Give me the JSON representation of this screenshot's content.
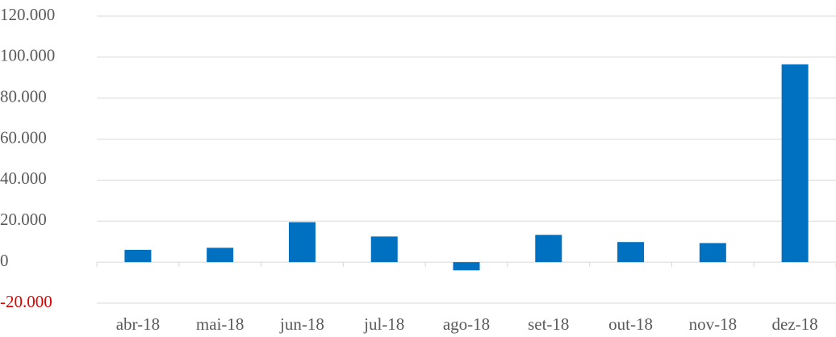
{
  "chart_data": {
    "type": "bar",
    "categories": [
      "abr-18",
      "mai-18",
      "jun-18",
      "jul-18",
      "ago-18",
      "set-18",
      "out-18",
      "nov-18",
      "dez-18"
    ],
    "values": [
      6000,
      7000,
      19500,
      12500,
      -4000,
      13300,
      9800,
      9300,
      96500
    ],
    "color": "#0070c0",
    "ylim": [
      -20000,
      120000
    ],
    "yticks": [
      {
        "value": -20000,
        "label": "-20.000"
      },
      0,
      {
        "value": 20000,
        "label": "20.000"
      },
      {
        "value": 40000,
        "label": "40.000"
      },
      {
        "value": 60000,
        "label": "60.000"
      },
      {
        "value": 80000,
        "label": "80.000"
      },
      {
        "value": 100000,
        "label": "100.000"
      },
      {
        "value": 120000,
        "label": "120.000"
      }
    ],
    "negative_tick_color": "#e00000",
    "grid": true
  }
}
